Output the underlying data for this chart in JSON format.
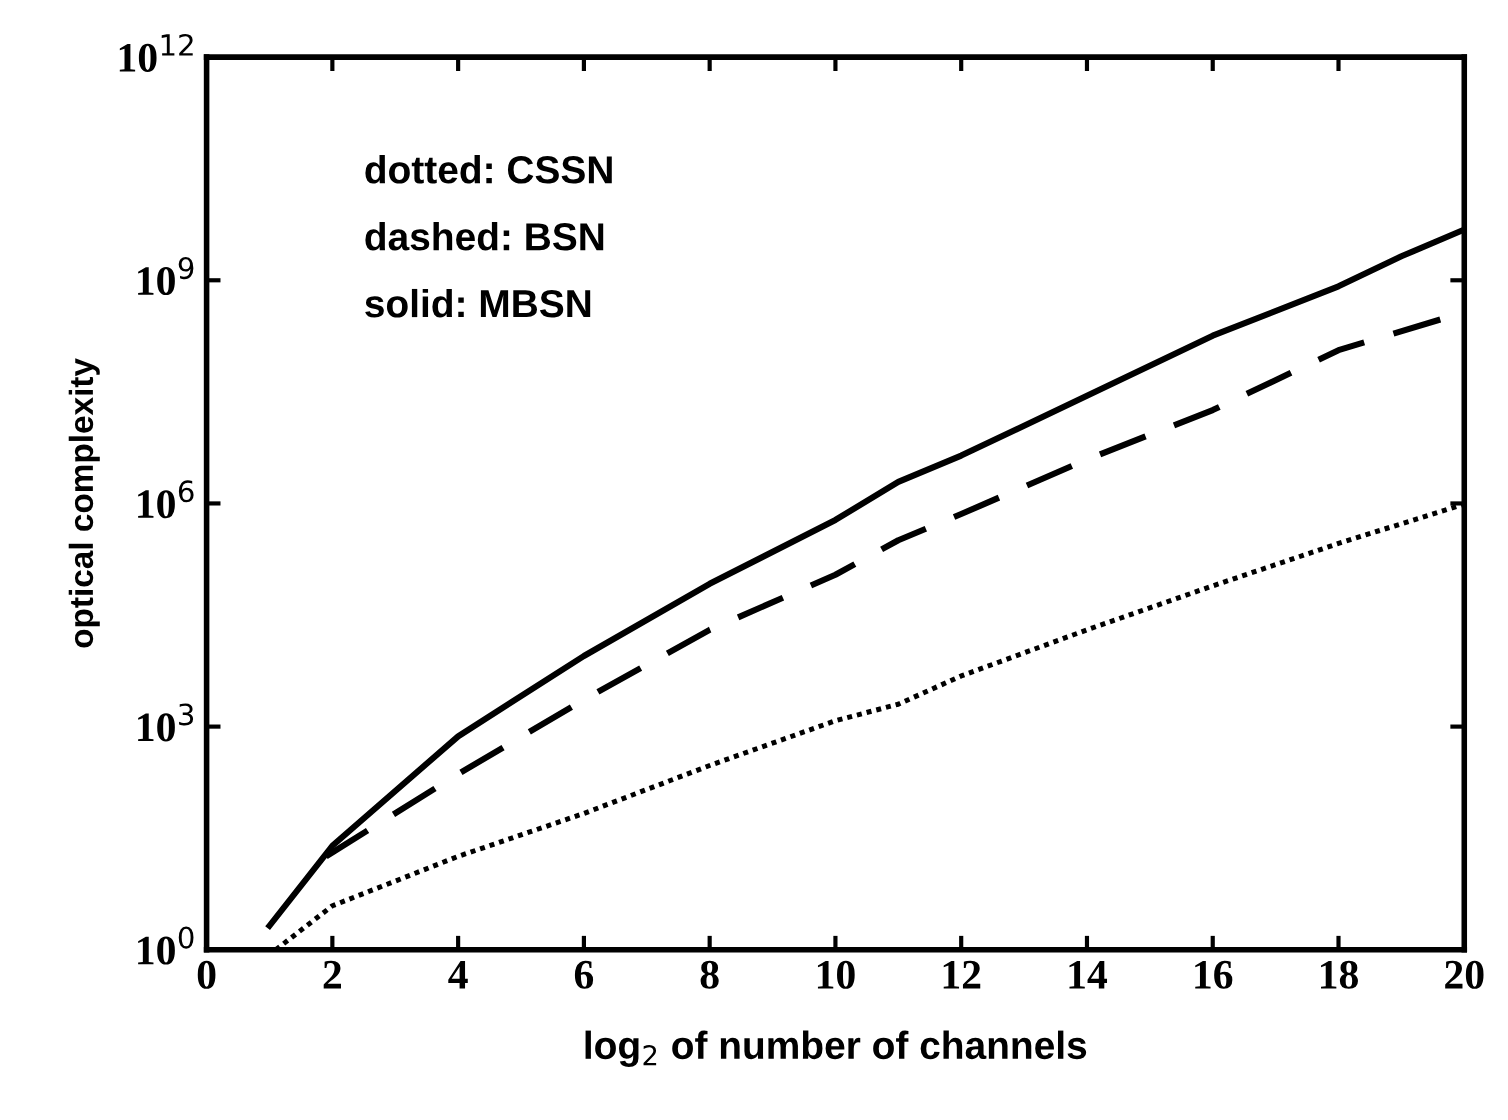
{
  "chart_data": {
    "type": "line",
    "xlabel": "log$_{2}$ of number of channels",
    "ylabel": "optical complexity",
    "log": "y",
    "xlim": [
      0,
      20
    ],
    "xticks": [
      0,
      2,
      4,
      6,
      8,
      10,
      12,
      14,
      16,
      18,
      20
    ],
    "ylim": [
      1,
      1000000000000.0
    ],
    "yticks": [
      {
        "value": 1,
        "label": "10$^{0}$"
      },
      {
        "value": 1000,
        "label": "10$^{3}$"
      },
      {
        "value": 1000000,
        "label": "10$^{6}$"
      },
      {
        "value": 1000000000,
        "label": "10$^{9}$"
      },
      {
        "value": 1000000000000,
        "label": "10$^{12}$"
      }
    ],
    "grid": false,
    "legend": false,
    "marker": "none",
    "annotations": [
      "dotted: CSSN",
      "dashed: BSN",
      "solid: MBSN"
    ],
    "series": [
      {
        "color": "#000000",
        "line_style": "dotted",
        "x": [
          1.1,
          2,
          4,
          6,
          8,
          10,
          11,
          12,
          14,
          16,
          18,
          20
        ],
        "values": [
          1,
          3.9,
          18,
          68,
          300,
          1200,
          2000,
          4800,
          20000,
          78000,
          290000,
          980000
        ]
      },
      {
        "color": "#000000",
        "line_style": "dashed",
        "x": [
          1.9,
          4,
          6,
          8,
          10,
          11,
          12,
          14,
          16,
          18,
          19.9
        ],
        "values": [
          18,
          230,
          2300,
          20000,
          110000,
          320000,
          720000,
          3900000,
          18000000,
          115000000,
          350000000
        ]
      },
      {
        "color": "#000000",
        "line_style": "solid",
        "x": [
          1,
          2,
          4,
          6,
          8,
          10,
          11,
          12,
          14,
          16,
          18,
          19,
          20
        ],
        "values": [
          2.1,
          25,
          740,
          8900,
          83000,
          600000,
          1950000,
          4400000,
          28000000,
          180000000,
          830000000,
          2100000000,
          4800000000
        ]
      }
    ]
  }
}
